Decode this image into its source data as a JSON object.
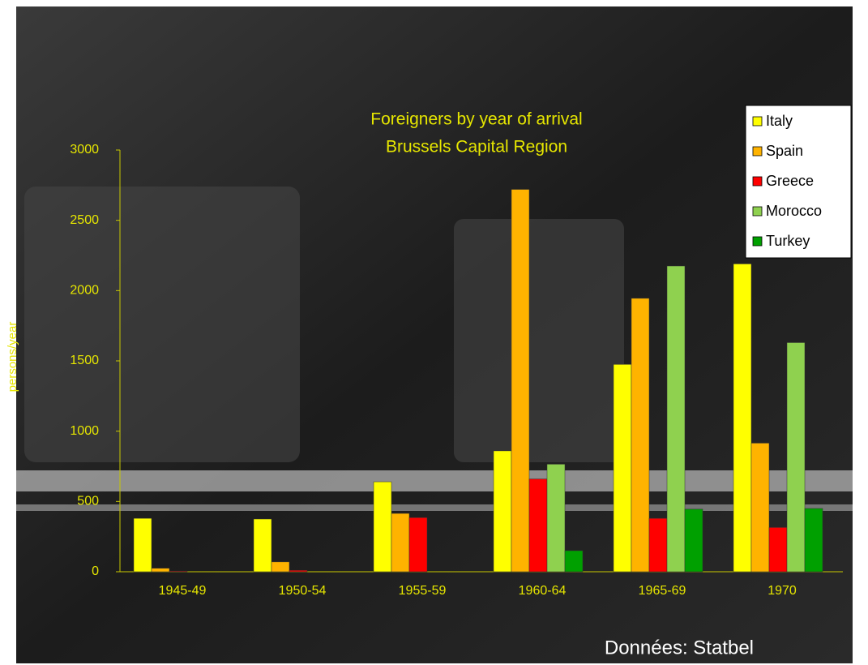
{
  "chart_data": {
    "type": "bar",
    "title": "Foreigners by year of arrival",
    "subtitle": "Brussels Capital Region",
    "y_label": "persons/year",
    "source": "Données: Statbel",
    "categories": [
      "1945-49",
      "1950-54",
      "1955-59",
      "1960-64",
      "1965-69",
      "1970"
    ],
    "series": [
      {
        "name": "Italy",
        "color": "#ffff00",
        "values": [
          380,
          375,
          640,
          860,
          1475,
          2190
        ]
      },
      {
        "name": "Spain",
        "color": "#ffb300",
        "values": [
          25,
          70,
          415,
          2720,
          1945,
          915
        ]
      },
      {
        "name": "Greece",
        "color": "#ff0000",
        "values": [
          5,
          10,
          385,
          660,
          380,
          315
        ]
      },
      {
        "name": "Morocco",
        "color": "#8fd14f",
        "values": [
          0,
          0,
          0,
          765,
          2175,
          1630
        ]
      },
      {
        "name": "Turkey",
        "color": "#00a000",
        "values": [
          0,
          0,
          0,
          150,
          445,
          450
        ]
      }
    ],
    "ylim": [
      0,
      3000
    ],
    "yticks": [
      0,
      500,
      1000,
      1500,
      2000,
      2500,
      3000
    ],
    "legend": "top-right"
  }
}
